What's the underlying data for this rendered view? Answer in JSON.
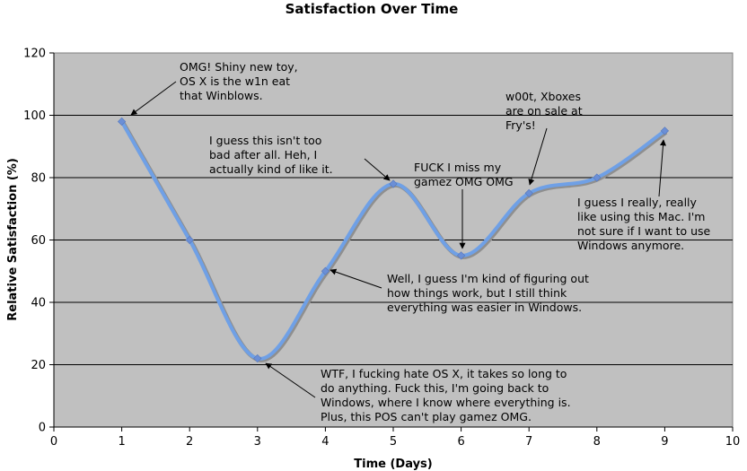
{
  "chart_data": {
    "type": "line",
    "title": "Satisfaction Over Time",
    "xlabel": "Time (Days)",
    "ylabel": "Relative Satisfaction (%)",
    "xlim": [
      0,
      10
    ],
    "ylim": [
      0,
      120
    ],
    "x_ticks": [
      "0",
      "1",
      "2",
      "3",
      "4",
      "5",
      "6",
      "7",
      "8",
      "9",
      "10"
    ],
    "y_ticks": [
      "0",
      "20",
      "40",
      "60",
      "80",
      "100",
      "120"
    ],
    "grid": "horizontal",
    "legend": "none",
    "series": [
      {
        "color": "#6fa0e6",
        "marker_color": "#6b8fd6",
        "smooth": true,
        "points": [
          {
            "x": 1,
            "y": 98
          },
          {
            "x": 2,
            "y": 60
          },
          {
            "x": 3,
            "y": 22
          },
          {
            "x": 4,
            "y": 50
          },
          {
            "x": 5,
            "y": 78
          },
          {
            "x": 6,
            "y": 55
          },
          {
            "x": 7,
            "y": 75
          },
          {
            "x": 8,
            "y": 80
          },
          {
            "x": 9,
            "y": 95
          }
        ]
      }
    ],
    "annotations": [
      {
        "point_x": 1,
        "point_y": 98,
        "lines": [
          "OMG! Shiny new toy,",
          "OS X is the w1n eat",
          "that Winblows."
        ]
      },
      {
        "point_x": 3,
        "point_y": 22,
        "lines": [
          "WTF, I fucking hate OS X, it takes so long to",
          "do anything.  Fuck this, I'm going back to",
          "Windows, where I know where everything is.",
          "Plus, this POS can't play gamez OMG."
        ]
      },
      {
        "point_x": 4,
        "point_y": 50,
        "lines": [
          "Well, I guess I'm kind of figuring out",
          "how things work, but I still think",
          "everything was easier in Windows."
        ]
      },
      {
        "point_x": 5,
        "point_y": 78,
        "lines": [
          "I guess this isn't too",
          "bad after all.  Heh, I",
          "actually kind of like it."
        ]
      },
      {
        "point_x": 6,
        "point_y": 55,
        "lines": [
          "FUCK I miss my",
          "gamez OMG OMG"
        ]
      },
      {
        "point_x": 7,
        "point_y": 75,
        "lines": [
          "w00t, Xboxes",
          "are on sale at",
          "Fry's!"
        ]
      },
      {
        "point_x": 9,
        "point_y": 95,
        "lines": [
          "I guess I really, really",
          "like using this Mac.  I'm",
          "not sure if I want to use",
          "Windows anymore."
        ]
      }
    ]
  }
}
